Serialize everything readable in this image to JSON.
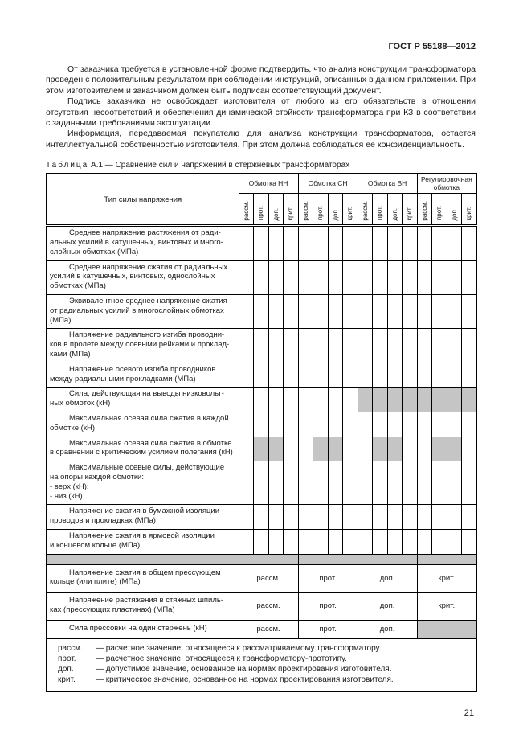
{
  "page": {
    "standard_code": "ГОСТ Р 55188—2012",
    "page_number": "21",
    "paragraphs": [
      "От заказчика требуется в установленной форме подтвердить, что анализ конструкции трансформатора проведен с положительным результатом при соблюдении инструкций, описанных в данном приложении. При этом изготовителем и заказчиком должен быть подписан соответствующий документ.",
      "Подпись заказчика не освобождает изготовителя от любого из его обязательств в отношении отсутствия несоответствий и обеспечения динамической стойкости трансформатора при КЗ в соответствии с заданными требованиями эксплуатации.",
      "Информация, передаваемая покупателю для анализа конструкции трансформатора, остается интеллектуальной собственностью изготовителя. При этом должна соблюдаться ее конфиденциальность."
    ]
  },
  "caption": {
    "word": "Таблица",
    "number": "А.1",
    "dash": "—",
    "text": "Сравнение сил и напряжений в стержневых трансформаторах"
  },
  "table": {
    "first_col_header": "Тип силы напряжения",
    "groups": [
      "Обмотка НН",
      "Обмотка СН",
      "Обмотка ВН",
      "Регулировочная обмотка"
    ],
    "subcols": [
      "рассм.",
      "прот.",
      "доп.",
      "крит."
    ],
    "rows": [
      {
        "type": "grid",
        "lines": [
          "Среднее напряжение растяжения от ради-",
          "альных усилий в катушечных, винтовых и много-",
          "слойных обмотках (МПа)"
        ],
        "shaded": []
      },
      {
        "type": "grid",
        "lines": [
          "Среднее напряжение сжатия от радиальных",
          "усилий в катушечных, винтовых, однослойных",
          "обмотках (МПа)"
        ],
        "shaded": []
      },
      {
        "type": "grid",
        "lines": [
          "Эквивалентное среднее напряжение сжатия",
          "от радиальных усилий в многослойных обмотках",
          "(МПа)"
        ],
        "shaded": []
      },
      {
        "type": "grid",
        "lines": [
          "Напряжение радиального изгиба проводни-",
          "ков в пролете между осевыми рейками и проклад-",
          "ками (МПа)"
        ],
        "shaded": []
      },
      {
        "type": "grid",
        "lines": [
          "Напряжение осевого изгиба проводников",
          "между радиальными прокладками (МПа)"
        ],
        "shaded": []
      },
      {
        "type": "grid",
        "lines": [
          "Сила, действующая на выводы низковольт-",
          "ных обмоток (кН)"
        ],
        "shaded": [
          9,
          10,
          11,
          12,
          13,
          14,
          15,
          16
        ]
      },
      {
        "type": "grid",
        "lines": [
          "Максимальная осевая сила сжатия в каждой",
          "обмотке (кН)"
        ],
        "shaded": []
      },
      {
        "type": "grid",
        "lines": [
          "Максимальная осевая сила сжатия в обмотке",
          "в сравнении с критическим усилием полегания (кН)"
        ],
        "shaded": [
          2,
          3,
          6,
          7,
          10,
          11,
          14,
          15
        ]
      },
      {
        "type": "grid",
        "lines": [
          "Максимальные осевые силы, действующие",
          "на опоры каждой обмотки:",
          "- верх (кН);",
          "- низ (кН)"
        ],
        "shaded": []
      },
      {
        "type": "grid",
        "lines": [
          "Напряжение сжатия в бумажной изоляции",
          "проводов и прокладках (МПа)"
        ],
        "shaded": []
      },
      {
        "type": "grid",
        "lines": [
          "Напряжение сжатия в ярмовой изоляции",
          "и концевом кольце (МПа)"
        ],
        "shaded": []
      },
      {
        "type": "separator"
      },
      {
        "type": "merged",
        "lines": [
          "Напряжение сжатия в общем прессующем",
          "кольце (или плите)  (МПа)"
        ],
        "cells": [
          "рассм.",
          "прот.",
          "доп.",
          "крит."
        ],
        "shaded": []
      },
      {
        "type": "merged",
        "lines": [
          "Напряжение растяжения в стяжных шпиль-",
          "ках (прессующих пластинах) (МПа)"
        ],
        "cells": [
          "рассм.",
          "прот.",
          "доп.",
          "крит."
        ],
        "shaded": []
      },
      {
        "type": "merged",
        "lines": [
          "Сила прессовки на один стержень (кН)"
        ],
        "cells": [
          "рассм.",
          "прот.",
          "доп.",
          ""
        ],
        "shaded": [
          4
        ]
      }
    ],
    "footnotes": [
      {
        "term": "рассм.",
        "text": "— расчетное значение, относящееся к рассматриваемому трансформатору."
      },
      {
        "term": "прот.",
        "text": "— расчетное значение, относящееся к трансформатору-прототипу."
      },
      {
        "term": "доп.",
        "text": "— допустимое значение, основанное на нормах проектирования изготовителя."
      },
      {
        "term": "крит.",
        "text": "— критическое значение, основанное на нормах проектирования изготовителя."
      }
    ]
  },
  "colors": {
    "shaded_cell": "#c5c5c5",
    "border": "#000000",
    "text": "#1c1c1c"
  }
}
